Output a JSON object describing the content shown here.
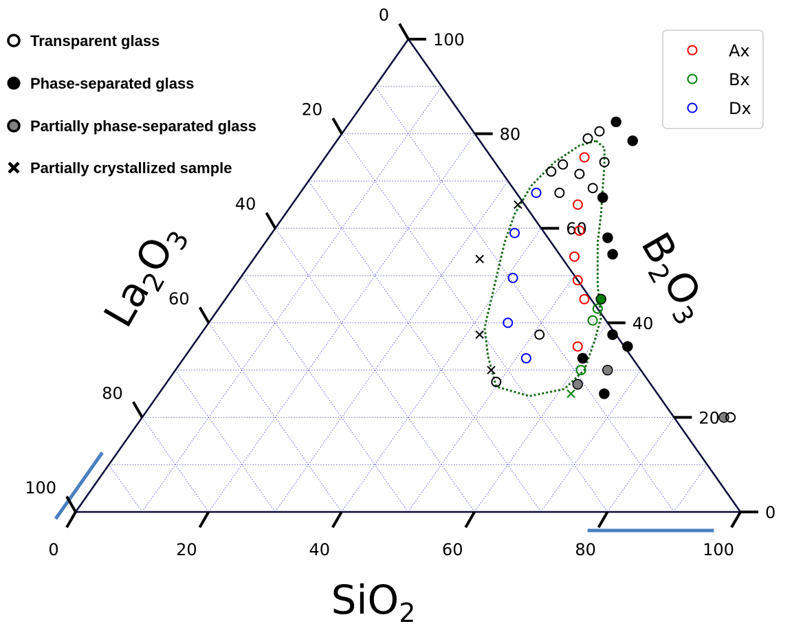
{
  "chart_data": {
    "type": "scatter",
    "subtype": "ternary",
    "axes": {
      "bottom": {
        "label": "SiO",
        "subscript": "2",
        "ticks": [
          "0",
          "20",
          "40",
          "60",
          "80",
          "100"
        ]
      },
      "left": {
        "label": "La",
        "subscript": "2",
        "label_tail": "O",
        "subscript_tail": "3",
        "ticks": [
          "100",
          "80",
          "60",
          "40",
          "20",
          "0"
        ]
      },
      "right": {
        "label": "B",
        "subscript": "2",
        "label_tail": "O",
        "subscript_tail": "3",
        "ticks": [
          "0",
          "20",
          "40",
          "60",
          "80",
          "100"
        ]
      }
    },
    "grid": true,
    "gridline_color": "#3a3adf",
    "frame_color": "#0b0b3b",
    "highlight_color": "#4a7fbf",
    "region_color": "#1a6b1a",
    "legend": {
      "placement": "top-right",
      "entries": [
        {
          "label": "Ax",
          "color": "#ff0000"
        },
        {
          "label": "Bx",
          "color": "#008000"
        },
        {
          "label": "Dx",
          "color": "#0000ff"
        }
      ]
    },
    "marker_key": [
      {
        "marker": "open-circle",
        "label": "Transparent glass"
      },
      {
        "marker": "filled-black",
        "label": "Phase-separated glass"
      },
      {
        "marker": "filled-gray",
        "label": "Partially phase-separated glass"
      },
      {
        "marker": "cross",
        "label": "Partially crystallized sample"
      }
    ],
    "points": [
      {
        "sio2": 40,
        "b2o3": 82.5,
        "style": "filled",
        "color": "#000000"
      },
      {
        "sio2": 44.5,
        "b2o3": 78.5,
        "style": "filled",
        "color": "#000000"
      },
      {
        "sio2": 46,
        "b2o3": 66.5,
        "style": "filled",
        "color": "#000000"
      },
      {
        "sio2": 51,
        "b2o3": 58,
        "style": "filled",
        "color": "#000000"
      },
      {
        "sio2": 53.5,
        "b2o3": 54.5,
        "style": "filled",
        "color": "#000000"
      },
      {
        "sio2": 62,
        "b2o3": 37.5,
        "style": "filled",
        "color": "#000000"
      },
      {
        "sio2": 65.5,
        "b2o3": 35,
        "style": "filled",
        "color": "#000000"
      },
      {
        "sio2": 60,
        "b2o3": 32.5,
        "style": "filled",
        "color": "#000000"
      },
      {
        "sio2": 67,
        "b2o3": 25,
        "style": "filled",
        "color": "#000000"
      },
      {
        "sio2": 56.5,
        "b2o3": 45,
        "style": "filled",
        "color": "#008000"
      },
      {
        "sio2": 62,
        "b2o3": 27,
        "style": "filled",
        "color": "#808080"
      },
      {
        "sio2": 65,
        "b2o3": 30,
        "style": "filled",
        "color": "#808080"
      },
      {
        "sio2": 87.5,
        "b2o3": 20,
        "style": "filled",
        "color": "#808080"
      },
      {
        "sio2": 38.5,
        "b2o3": 80.5,
        "style": "open",
        "color": "#000000"
      },
      {
        "sio2": 37.5,
        "b2o3": 79,
        "style": "open",
        "color": "#000000"
      },
      {
        "sio2": 36.5,
        "b2o3": 73.5,
        "style": "open",
        "color": "#000000"
      },
      {
        "sio2": 35.5,
        "b2o3": 72,
        "style": "open",
        "color": "#000000"
      },
      {
        "sio2": 42.5,
        "b2o3": 74,
        "style": "open",
        "color": "#000000"
      },
      {
        "sio2": 40,
        "b2o3": 71.5,
        "style": "open",
        "color": "#000000"
      },
      {
        "sio2": 43.5,
        "b2o3": 68.5,
        "style": "open",
        "color": "#000000"
      },
      {
        "sio2": 39,
        "b2o3": 67.5,
        "style": "open",
        "color": "#000000"
      },
      {
        "sio2": 51,
        "b2o3": 37.5,
        "style": "open",
        "color": "#000000"
      },
      {
        "sio2": 49.5,
        "b2o3": 27.5,
        "style": "open",
        "color": "#000000"
      },
      {
        "sio2": 88.5,
        "b2o3": 20,
        "style": "open",
        "color": "#000000"
      },
      {
        "sio2": 39,
        "b2o3": 75,
        "style": "open",
        "color": "#ff0000"
      },
      {
        "sio2": 43,
        "b2o3": 65,
        "style": "open",
        "color": "#ff0000"
      },
      {
        "sio2": 46,
        "b2o3": 59.5,
        "style": "open",
        "color": "#ff0000"
      },
      {
        "sio2": 48,
        "b2o3": 54,
        "style": "open",
        "color": "#ff0000"
      },
      {
        "sio2": 51,
        "b2o3": 49,
        "style": "open",
        "color": "#ff0000"
      },
      {
        "sio2": 54,
        "b2o3": 45,
        "style": "open",
        "color": "#ff0000"
      },
      {
        "sio2": 58,
        "b2o3": 35,
        "style": "open",
        "color": "#ff0000"
      },
      {
        "sio2": 57,
        "b2o3": 43,
        "style": "open",
        "color": "#008000"
      },
      {
        "sio2": 57.5,
        "b2o3": 40.5,
        "style": "open",
        "color": "#008000"
      },
      {
        "sio2": 61,
        "b2o3": 30,
        "style": "open",
        "color": "#008000"
      },
      {
        "sio2": 35.5,
        "b2o3": 67.5,
        "style": "open",
        "color": "#0000ff"
      },
      {
        "sio2": 36.5,
        "b2o3": 59,
        "style": "open",
        "color": "#0000ff"
      },
      {
        "sio2": 41,
        "b2o3": 49.5,
        "style": "open",
        "color": "#0000ff"
      },
      {
        "sio2": 45,
        "b2o3": 40,
        "style": "open",
        "color": "#0000ff"
      },
      {
        "sio2": 51.5,
        "b2o3": 32.5,
        "style": "open",
        "color": "#0000ff"
      },
      {
        "sio2": 34,
        "b2o3": 65,
        "style": "cross",
        "color": "#000000"
      },
      {
        "sio2": 34,
        "b2o3": 53.5,
        "style": "cross",
        "color": "#000000"
      },
      {
        "sio2": 42,
        "b2o3": 37.5,
        "style": "cross",
        "color": "#000000"
      },
      {
        "sio2": 47.5,
        "b2o3": 30,
        "style": "cross",
        "color": "#000000"
      },
      {
        "sio2": 62,
        "b2o3": 25,
        "style": "cross",
        "color": "#008000"
      }
    ],
    "region_boundary": [
      {
        "sio2": 39,
        "b2o3": 78.5
      },
      {
        "sio2": 41,
        "b2o3": 77
      },
      {
        "sio2": 43,
        "b2o3": 73
      },
      {
        "sio2": 45,
        "b2o3": 68.5
      },
      {
        "sio2": 47.5,
        "b2o3": 63
      },
      {
        "sio2": 50,
        "b2o3": 57
      },
      {
        "sio2": 54.5,
        "b2o3": 48
      },
      {
        "sio2": 58.5,
        "b2o3": 41
      },
      {
        "sio2": 60,
        "b2o3": 36
      },
      {
        "sio2": 61.5,
        "b2o3": 30
      },
      {
        "sio2": 60.5,
        "b2o3": 26
      },
      {
        "sio2": 56,
        "b2o3": 24.5
      },
      {
        "sio2": 50,
        "b2o3": 26.5
      },
      {
        "sio2": 45.5,
        "b2o3": 33
      },
      {
        "sio2": 42,
        "b2o3": 39
      },
      {
        "sio2": 40,
        "b2o3": 45
      },
      {
        "sio2": 38,
        "b2o3": 51
      },
      {
        "sio2": 36,
        "b2o3": 57
      },
      {
        "sio2": 34.5,
        "b2o3": 63
      },
      {
        "sio2": 34,
        "b2o3": 69
      },
      {
        "sio2": 35,
        "b2o3": 74
      },
      {
        "sio2": 37,
        "b2o3": 77.5
      }
    ],
    "highlight_segments": [
      {
        "axis": "left",
        "from": 86,
        "to": 100
      },
      {
        "axis": "bottom",
        "from": 77,
        "to": 96
      }
    ]
  }
}
